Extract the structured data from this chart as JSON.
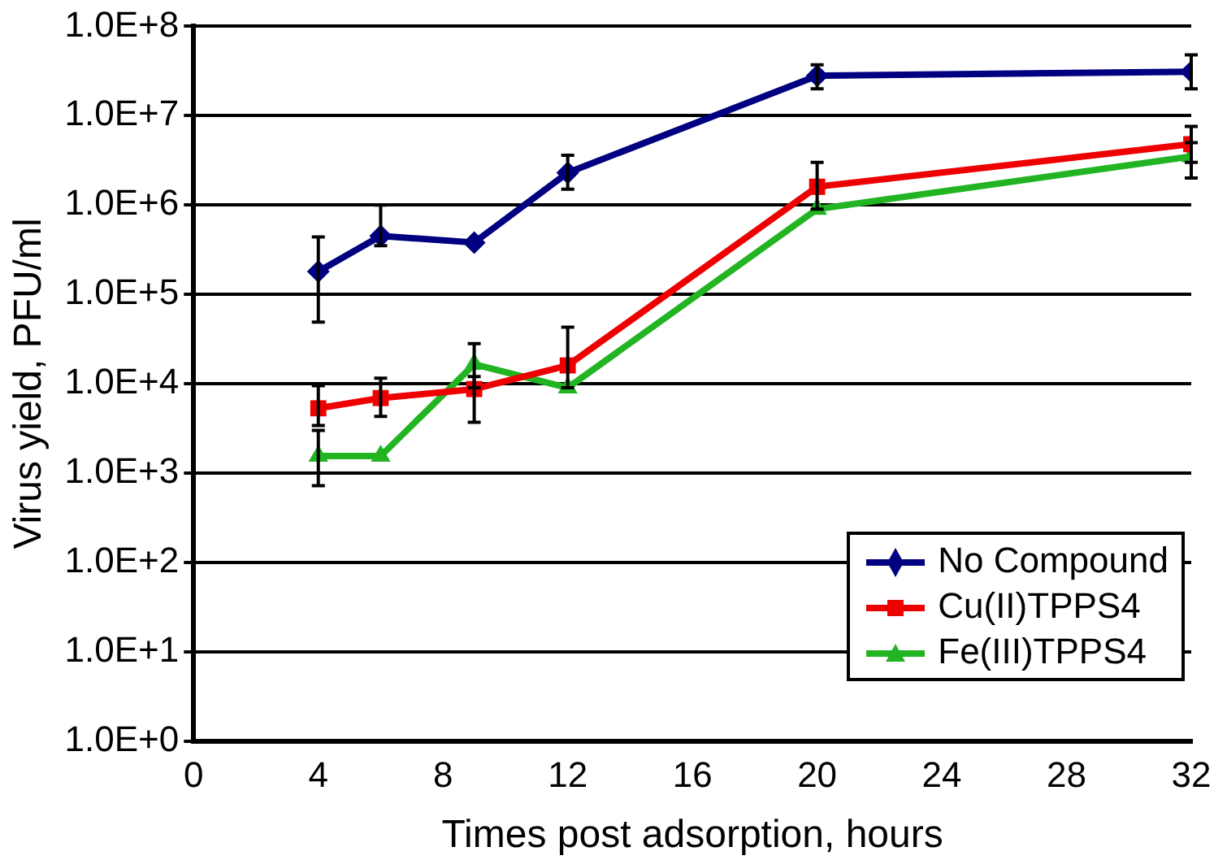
{
  "chart_data": {
    "type": "line",
    "xlabel": "Times post adsorption, hours",
    "ylabel": "Virus yield, PFU/ml",
    "xlim": [
      0,
      32
    ],
    "xticks": [
      0,
      4,
      8,
      12,
      16,
      20,
      24,
      28,
      32
    ],
    "ylim": [
      1,
      100000000
    ],
    "log": "y",
    "grid": "y",
    "legend": "bottom right",
    "line_style": "solid",
    "yticks": [
      {
        "value": 1,
        "label": "1.0E+0"
      },
      {
        "value": 10,
        "label": "1.0E+1"
      },
      {
        "value": 100,
        "label": "1.0E+2"
      },
      {
        "value": 1000,
        "label": "1.0E+3"
      },
      {
        "value": 10000,
        "label": "1.0E+4"
      },
      {
        "value": 100000,
        "label": "1.0E+5"
      },
      {
        "value": 1000000,
        "label": "1.0E+6"
      },
      {
        "value": 10000000,
        "label": "1.0E+7"
      },
      {
        "value": 100000000,
        "label": "1.0E+8"
      }
    ],
    "series": [
      {
        "name": "No Compound",
        "color": "#000080",
        "marker": "diamond",
        "x": [
          4,
          6,
          9,
          12,
          20,
          32
        ],
        "values": [
          180000,
          450000,
          380000,
          2300000,
          28000000,
          31000000
        ],
        "errors": [
          [
            49000,
            440000
          ],
          [
            350000,
            1000000
          ],
          null,
          [
            1500000,
            3600000
          ],
          [
            20000000,
            37000000
          ],
          [
            20000000,
            48000000
          ]
        ]
      },
      {
        "name": "Cu(II)TPPS4",
        "color": "#ee0000",
        "marker": "square",
        "x": [
          4,
          6,
          9,
          12,
          20,
          32
        ],
        "values": [
          5300,
          6900,
          8700,
          16000,
          1600000,
          4800000
        ],
        "errors": [
          [
            3400,
            9500
          ],
          [
            4300,
            11500
          ],
          [
            3700,
            12000
          ],
          [
            9000,
            43000
          ],
          [
            900000,
            3000000
          ],
          [
            3000000,
            7600000
          ]
        ]
      },
      {
        "name": "Fe(III)TPPS4",
        "color": "#22b422",
        "marker": "triangle",
        "x": [
          4,
          6,
          9,
          12,
          20,
          32
        ],
        "values": [
          1550,
          1550,
          16500,
          9000,
          900000,
          3500000
        ],
        "errors": [
          [
            720,
            3000
          ],
          null,
          [
            9000,
            28000
          ],
          null,
          null,
          [
            2000000,
            5000000
          ]
        ]
      }
    ]
  }
}
